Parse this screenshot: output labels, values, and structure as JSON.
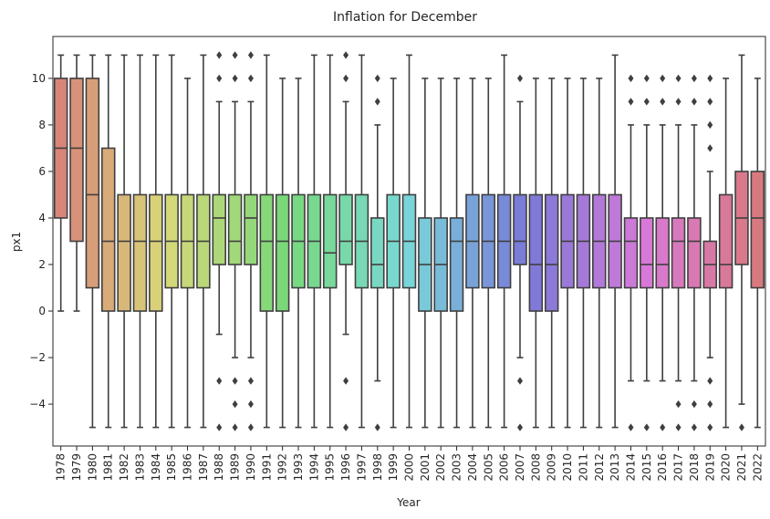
{
  "chart_data": {
    "type": "box",
    "title": "Inflation for December",
    "xlabel": "Year",
    "ylabel": "px1",
    "ylim": [
      -5.8,
      11.8
    ],
    "yticks": [
      -4,
      -2,
      0,
      2,
      4,
      6,
      8,
      10
    ],
    "grid": false,
    "legend": "none",
    "categories": [
      "1978",
      "1979",
      "1980",
      "1981",
      "1982",
      "1983",
      "1984",
      "1985",
      "1986",
      "1987",
      "1988",
      "1989",
      "1990",
      "1991",
      "1992",
      "1993",
      "1994",
      "1995",
      "1996",
      "1997",
      "1998",
      "1999",
      "2000",
      "2001",
      "2002",
      "2003",
      "2004",
      "2005",
      "2006",
      "2007",
      "2008",
      "2009",
      "2010",
      "2011",
      "2012",
      "2013",
      "2014",
      "2015",
      "2016",
      "2017",
      "2018",
      "2019",
      "2020",
      "2021",
      "2022"
    ],
    "boxes": [
      {
        "year": "1978",
        "whislo": 0,
        "q1": 4,
        "med": 7,
        "q3": 10,
        "whishi": 11,
        "fliers": []
      },
      {
        "year": "1979",
        "whislo": 0,
        "q1": 3,
        "med": 7,
        "q3": 10,
        "whishi": 11,
        "fliers": []
      },
      {
        "year": "1980",
        "whislo": -5,
        "q1": 1,
        "med": 5,
        "q3": 10,
        "whishi": 11,
        "fliers": []
      },
      {
        "year": "1981",
        "whislo": -5,
        "q1": 0,
        "med": 3,
        "q3": 7,
        "whishi": 11,
        "fliers": []
      },
      {
        "year": "1982",
        "whislo": -5,
        "q1": 0,
        "med": 3,
        "q3": 5,
        "whishi": 11,
        "fliers": []
      },
      {
        "year": "1983",
        "whislo": -5,
        "q1": 0,
        "med": 3,
        "q3": 5,
        "whishi": 11,
        "fliers": []
      },
      {
        "year": "1984",
        "whislo": -5,
        "q1": 0,
        "med": 3,
        "q3": 5,
        "whishi": 11,
        "fliers": []
      },
      {
        "year": "1985",
        "whislo": -5,
        "q1": 1,
        "med": 3,
        "q3": 5,
        "whishi": 11,
        "fliers": []
      },
      {
        "year": "1986",
        "whislo": -5,
        "q1": 1,
        "med": 3,
        "q3": 5,
        "whishi": 10,
        "fliers": []
      },
      {
        "year": "1987",
        "whislo": -5,
        "q1": 1,
        "med": 3,
        "q3": 5,
        "whishi": 11,
        "fliers": []
      },
      {
        "year": "1988",
        "whislo": -1,
        "q1": 2,
        "med": 4,
        "q3": 5,
        "whishi": 9,
        "fliers": [
          -5,
          -3,
          10,
          11
        ]
      },
      {
        "year": "1989",
        "whislo": -2,
        "q1": 2,
        "med": 3,
        "q3": 5,
        "whishi": 9,
        "fliers": [
          -5,
          -4,
          -3,
          10,
          11
        ]
      },
      {
        "year": "1990",
        "whislo": -2,
        "q1": 2,
        "med": 4,
        "q3": 5,
        "whishi": 9,
        "fliers": [
          -5,
          -4,
          -3,
          10,
          11
        ]
      },
      {
        "year": "1991",
        "whislo": -5,
        "q1": 0,
        "med": 3,
        "q3": 5,
        "whishi": 11,
        "fliers": []
      },
      {
        "year": "1992",
        "whislo": -5,
        "q1": 0,
        "med": 3,
        "q3": 5,
        "whishi": 10,
        "fliers": []
      },
      {
        "year": "1993",
        "whislo": -5,
        "q1": 1,
        "med": 3,
        "q3": 5,
        "whishi": 10,
        "fliers": []
      },
      {
        "year": "1994",
        "whislo": -5,
        "q1": 1,
        "med": 3,
        "q3": 5,
        "whishi": 11,
        "fliers": []
      },
      {
        "year": "1995",
        "whislo": -5,
        "q1": 1,
        "med": 2.5,
        "q3": 5,
        "whishi": 11,
        "fliers": []
      },
      {
        "year": "1996",
        "whislo": -1,
        "q1": 2,
        "med": 3,
        "q3": 5,
        "whishi": 9,
        "fliers": [
          -5,
          -3,
          10,
          11
        ]
      },
      {
        "year": "1997",
        "whislo": -5,
        "q1": 1,
        "med": 3,
        "q3": 5,
        "whishi": 11,
        "fliers": []
      },
      {
        "year": "1998",
        "whislo": -3,
        "q1": 1,
        "med": 2,
        "q3": 4,
        "whishi": 8,
        "fliers": [
          -5,
          9,
          10
        ]
      },
      {
        "year": "1999",
        "whislo": -5,
        "q1": 1,
        "med": 3,
        "q3": 5,
        "whishi": 10,
        "fliers": []
      },
      {
        "year": "2000",
        "whislo": -5,
        "q1": 1,
        "med": 3,
        "q3": 5,
        "whishi": 11,
        "fliers": []
      },
      {
        "year": "2001",
        "whislo": -5,
        "q1": 0,
        "med": 2,
        "q3": 4,
        "whishi": 10,
        "fliers": []
      },
      {
        "year": "2002",
        "whislo": -5,
        "q1": 0,
        "med": 2,
        "q3": 4,
        "whishi": 10,
        "fliers": []
      },
      {
        "year": "2003",
        "whislo": -5,
        "q1": 0,
        "med": 3,
        "q3": 4,
        "whishi": 10,
        "fliers": []
      },
      {
        "year": "2004",
        "whislo": -5,
        "q1": 1,
        "med": 3,
        "q3": 5,
        "whishi": 10,
        "fliers": []
      },
      {
        "year": "2005",
        "whislo": -5,
        "q1": 1,
        "med": 3,
        "q3": 5,
        "whishi": 10,
        "fliers": []
      },
      {
        "year": "2006",
        "whislo": -5,
        "q1": 1,
        "med": 3,
        "q3": 5,
        "whishi": 11,
        "fliers": []
      },
      {
        "year": "2007",
        "whislo": -2,
        "q1": 2,
        "med": 3,
        "q3": 5,
        "whishi": 9,
        "fliers": [
          -5,
          -3,
          10
        ]
      },
      {
        "year": "2008",
        "whislo": -5,
        "q1": 0,
        "med": 2,
        "q3": 5,
        "whishi": 10,
        "fliers": []
      },
      {
        "year": "2009",
        "whislo": -5,
        "q1": 0,
        "med": 2,
        "q3": 5,
        "whishi": 10,
        "fliers": []
      },
      {
        "year": "2010",
        "whislo": -5,
        "q1": 1,
        "med": 3,
        "q3": 5,
        "whishi": 10,
        "fliers": []
      },
      {
        "year": "2011",
        "whislo": -5,
        "q1": 1,
        "med": 3,
        "q3": 5,
        "whishi": 10,
        "fliers": []
      },
      {
        "year": "2012",
        "whislo": -5,
        "q1": 1,
        "med": 3,
        "q3": 5,
        "whishi": 10,
        "fliers": []
      },
      {
        "year": "2013",
        "whislo": -5,
        "q1": 1,
        "med": 3,
        "q3": 5,
        "whishi": 11,
        "fliers": []
      },
      {
        "year": "2014",
        "whislo": -3,
        "q1": 1,
        "med": 3,
        "q3": 4,
        "whishi": 8,
        "fliers": [
          -5,
          9,
          10
        ]
      },
      {
        "year": "2015",
        "whislo": -3,
        "q1": 1,
        "med": 2,
        "q3": 4,
        "whishi": 8,
        "fliers": [
          -5,
          9,
          10
        ]
      },
      {
        "year": "2016",
        "whislo": -3,
        "q1": 1,
        "med": 2,
        "q3": 4,
        "whishi": 8,
        "fliers": [
          -5,
          9,
          10
        ]
      },
      {
        "year": "2017",
        "whislo": -3,
        "q1": 1,
        "med": 3,
        "q3": 4,
        "whishi": 8,
        "fliers": [
          -5,
          -4,
          9,
          10
        ]
      },
      {
        "year": "2018",
        "whislo": -3,
        "q1": 1,
        "med": 3,
        "q3": 4,
        "whishi": 8,
        "fliers": [
          -5,
          -4,
          9,
          10
        ]
      },
      {
        "year": "2019",
        "whislo": -2,
        "q1": 1,
        "med": 2,
        "q3": 3,
        "whishi": 6,
        "fliers": [
          -5,
          -4,
          -3,
          7,
          8,
          9,
          10
        ]
      },
      {
        "year": "2020",
        "whislo": -5,
        "q1": 1,
        "med": 2,
        "q3": 5,
        "whishi": 10,
        "fliers": []
      },
      {
        "year": "2021",
        "whislo": -4,
        "q1": 2,
        "med": 4,
        "q3": 6,
        "whishi": 11,
        "fliers": [
          -5
        ]
      },
      {
        "year": "2022",
        "whislo": -5,
        "q1": 1,
        "med": 4,
        "q3": 6,
        "whishi": 10,
        "fliers": []
      }
    ]
  }
}
